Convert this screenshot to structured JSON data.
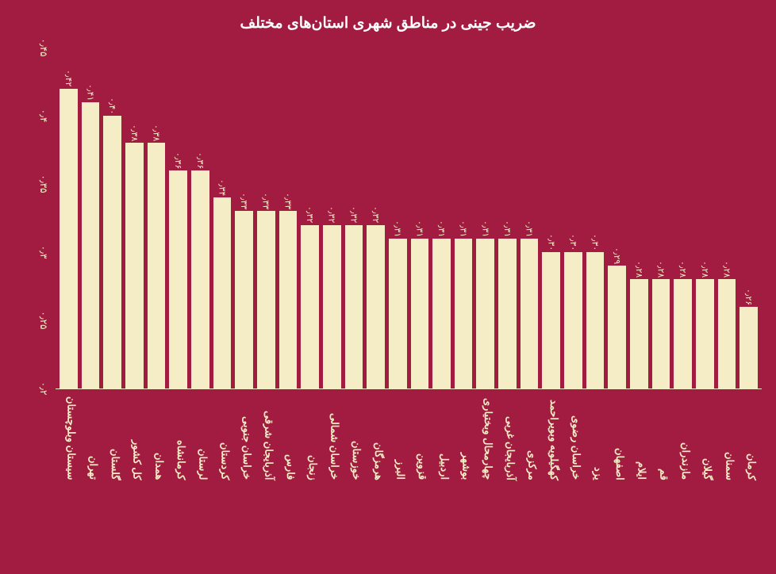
{
  "chart": {
    "type": "bar",
    "title": "ضریب جینی در مناطق شهری استان‌های مختلف",
    "title_fontsize": 19,
    "background_color": "#a21c41",
    "bar_color": "#f5edc5",
    "text_color": "#f5edc5",
    "title_color": "#ffffff",
    "label_fontsize": 13,
    "value_fontsize": 11,
    "ylim_min": 0.2,
    "ylim_max": 0.45,
    "yticks": [
      {
        "value": 0.2,
        "label": "۰٫۲"
      },
      {
        "value": 0.25,
        "label": "۰٫۲۵"
      },
      {
        "value": 0.3,
        "label": "۰٫۳"
      },
      {
        "value": 0.35,
        "label": "۰٫۳۵"
      },
      {
        "value": 0.4,
        "label": "۰٫۴"
      },
      {
        "value": 0.45,
        "label": "۰٫۴۵"
      }
    ],
    "bars": [
      {
        "label": "سیستان وبلوچستان",
        "value": 0.42,
        "value_label": "۰٫۴۲"
      },
      {
        "label": "تهران",
        "value": 0.41,
        "value_label": "۰٫۴۱"
      },
      {
        "label": "گلستان",
        "value": 0.4,
        "value_label": "۰٫۴۰"
      },
      {
        "label": "کل کشور",
        "value": 0.38,
        "value_label": "۰٫۳۸"
      },
      {
        "label": "همدان",
        "value": 0.38,
        "value_label": "۰٫۳۸"
      },
      {
        "label": "کرمانشاه",
        "value": 0.36,
        "value_label": "۰٫۳۶"
      },
      {
        "label": "لرستان",
        "value": 0.36,
        "value_label": "۰٫۳۶"
      },
      {
        "label": "کردستان",
        "value": 0.34,
        "value_label": "۰٫۳۴"
      },
      {
        "label": "خراسان جنوبی",
        "value": 0.33,
        "value_label": "۰٫۳۳"
      },
      {
        "label": "آذربایجان شرقی",
        "value": 0.33,
        "value_label": "۰٫۳۳"
      },
      {
        "label": "فارس",
        "value": 0.33,
        "value_label": "۰٫۳۳"
      },
      {
        "label": "زنجان",
        "value": 0.32,
        "value_label": "۰٫۳۲"
      },
      {
        "label": "خراسان شمالی",
        "value": 0.32,
        "value_label": "۰٫۳۲"
      },
      {
        "label": "خوزستان",
        "value": 0.32,
        "value_label": "۰٫۳۲"
      },
      {
        "label": "هرمزگان",
        "value": 0.32,
        "value_label": "۰٫۳۲"
      },
      {
        "label": "البرز",
        "value": 0.31,
        "value_label": "۰٫۳۱"
      },
      {
        "label": "قزوین",
        "value": 0.31,
        "value_label": "۰٫۳۱"
      },
      {
        "label": "اردبیل",
        "value": 0.31,
        "value_label": "۰٫۳۱"
      },
      {
        "label": "بوشهر",
        "value": 0.31,
        "value_label": "۰٫۳۱"
      },
      {
        "label": "چهارمحال وبختیاری",
        "value": 0.31,
        "value_label": "۰٫۳۱"
      },
      {
        "label": "آذربایجان غربی",
        "value": 0.31,
        "value_label": "۰٫۳۱"
      },
      {
        "label": "مرکزی",
        "value": 0.31,
        "value_label": "۰٫۳۱"
      },
      {
        "label": "کهگیلویه وبویراحمد",
        "value": 0.3,
        "value_label": "۰٫۳۰"
      },
      {
        "label": "خراسان رضوی",
        "value": 0.3,
        "value_label": "۰٫۳۰"
      },
      {
        "label": "یزد",
        "value": 0.3,
        "value_label": "۰٫۳۰"
      },
      {
        "label": "اصفهان",
        "value": 0.29,
        "value_label": "۰٫۲۹"
      },
      {
        "label": "ایلام",
        "value": 0.28,
        "value_label": "۰٫۲۸"
      },
      {
        "label": "قم",
        "value": 0.28,
        "value_label": "۰٫۲۸"
      },
      {
        "label": "مازندران",
        "value": 0.28,
        "value_label": "۰٫۲۸"
      },
      {
        "label": "گیلان",
        "value": 0.28,
        "value_label": "۰٫۲۸"
      },
      {
        "label": "سمنان",
        "value": 0.28,
        "value_label": "۰٫۲۸"
      },
      {
        "label": "کرمان",
        "value": 0.26,
        "value_label": "۰٫۲۶"
      }
    ]
  }
}
